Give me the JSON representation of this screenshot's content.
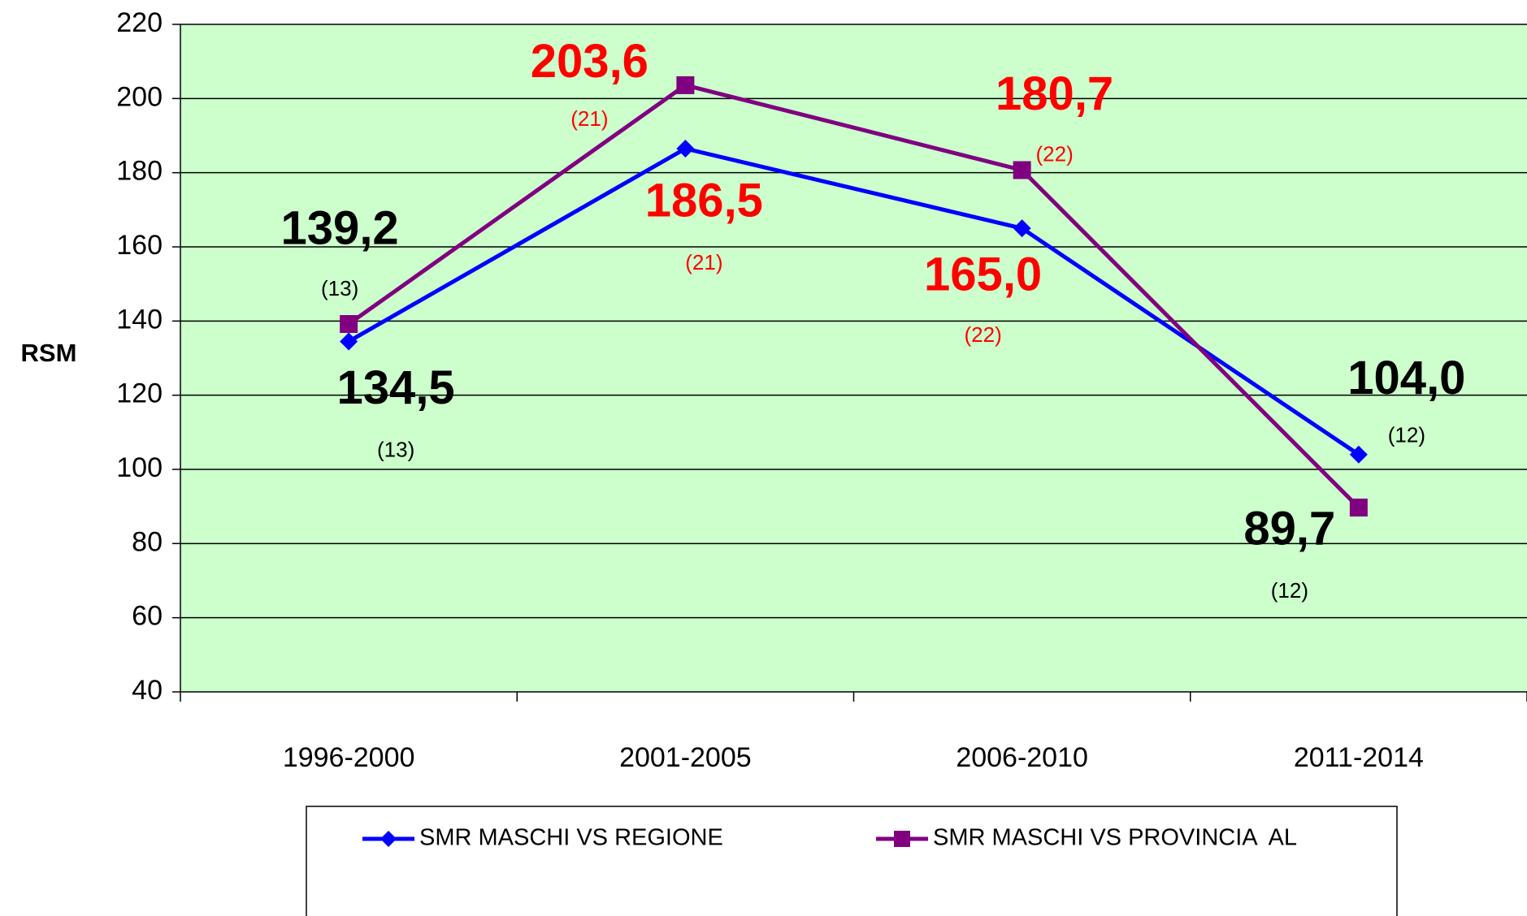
{
  "chart_data": {
    "type": "line",
    "y_label": "RSM",
    "categories": [
      "1996-2000",
      "2001-2005",
      "2006-2010",
      "2011-2014"
    ],
    "series": [
      {
        "name": "SMR MASCHI VS REGIONE",
        "color": "#0000ff",
        "marker": "diamond",
        "values": [
          134.5,
          186.5,
          165.0,
          104.0
        ],
        "value_labels": [
          "134,5",
          "186,5",
          "165,0",
          "104,0"
        ],
        "count_labels": [
          "(13)",
          "(21)",
          "(22)",
          "(12)"
        ],
        "label_colors": [
          "#000000",
          "#ff0000",
          "#ff0000",
          "#000000"
        ]
      },
      {
        "name": "SMR MASCHI VS PROVINCIA  AL",
        "color": "#800080",
        "marker": "square",
        "values": [
          139.2,
          203.6,
          180.7,
          89.7
        ],
        "value_labels": [
          "139,2",
          "203,6",
          "180,7",
          "89,7"
        ],
        "count_labels": [
          "(13)",
          "(21)",
          "(22)",
          "(12)"
        ],
        "label_colors": [
          "#000000",
          "#ff0000",
          "#ff0000",
          "#000000"
        ]
      }
    ],
    "ylim": [
      40,
      220
    ],
    "yticks": [
      40,
      60,
      80,
      100,
      120,
      140,
      160,
      180,
      200,
      220
    ],
    "grid": true,
    "background": "#ccffcc",
    "legend": "bottom"
  }
}
